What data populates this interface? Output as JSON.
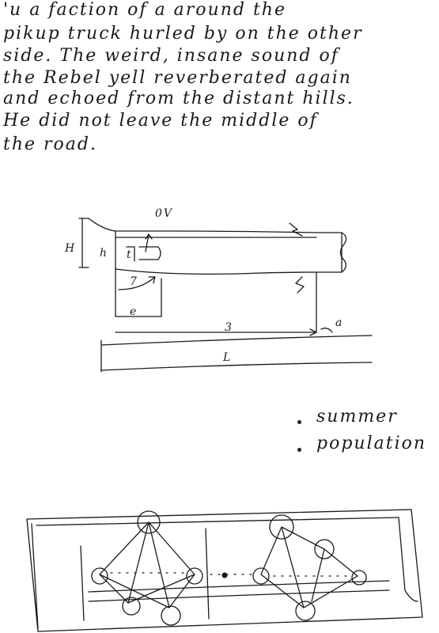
{
  "paragraph": [
    "'u a faction of a around the",
    "pikup truck hurled by on the other",
    "side. The weird, insane sound of",
    "the Rebel yell reverberated again",
    "and echoed from the distant hills.",
    "He did not leave the middle of",
    "the road."
  ],
  "sketch_labels": {
    "top_right_mark": "0V",
    "left_outer": "H",
    "left_inner": "h",
    "inner_step": "t",
    "diagonal": "7",
    "bottom_left": "e",
    "mid_bottom": "3",
    "right_angle": "a",
    "long_bottom": "L"
  },
  "bullets": [
    "summer",
    "population"
  ],
  "colors": {
    "ink": "#1a1a1a",
    "paper": "#ffffff"
  }
}
